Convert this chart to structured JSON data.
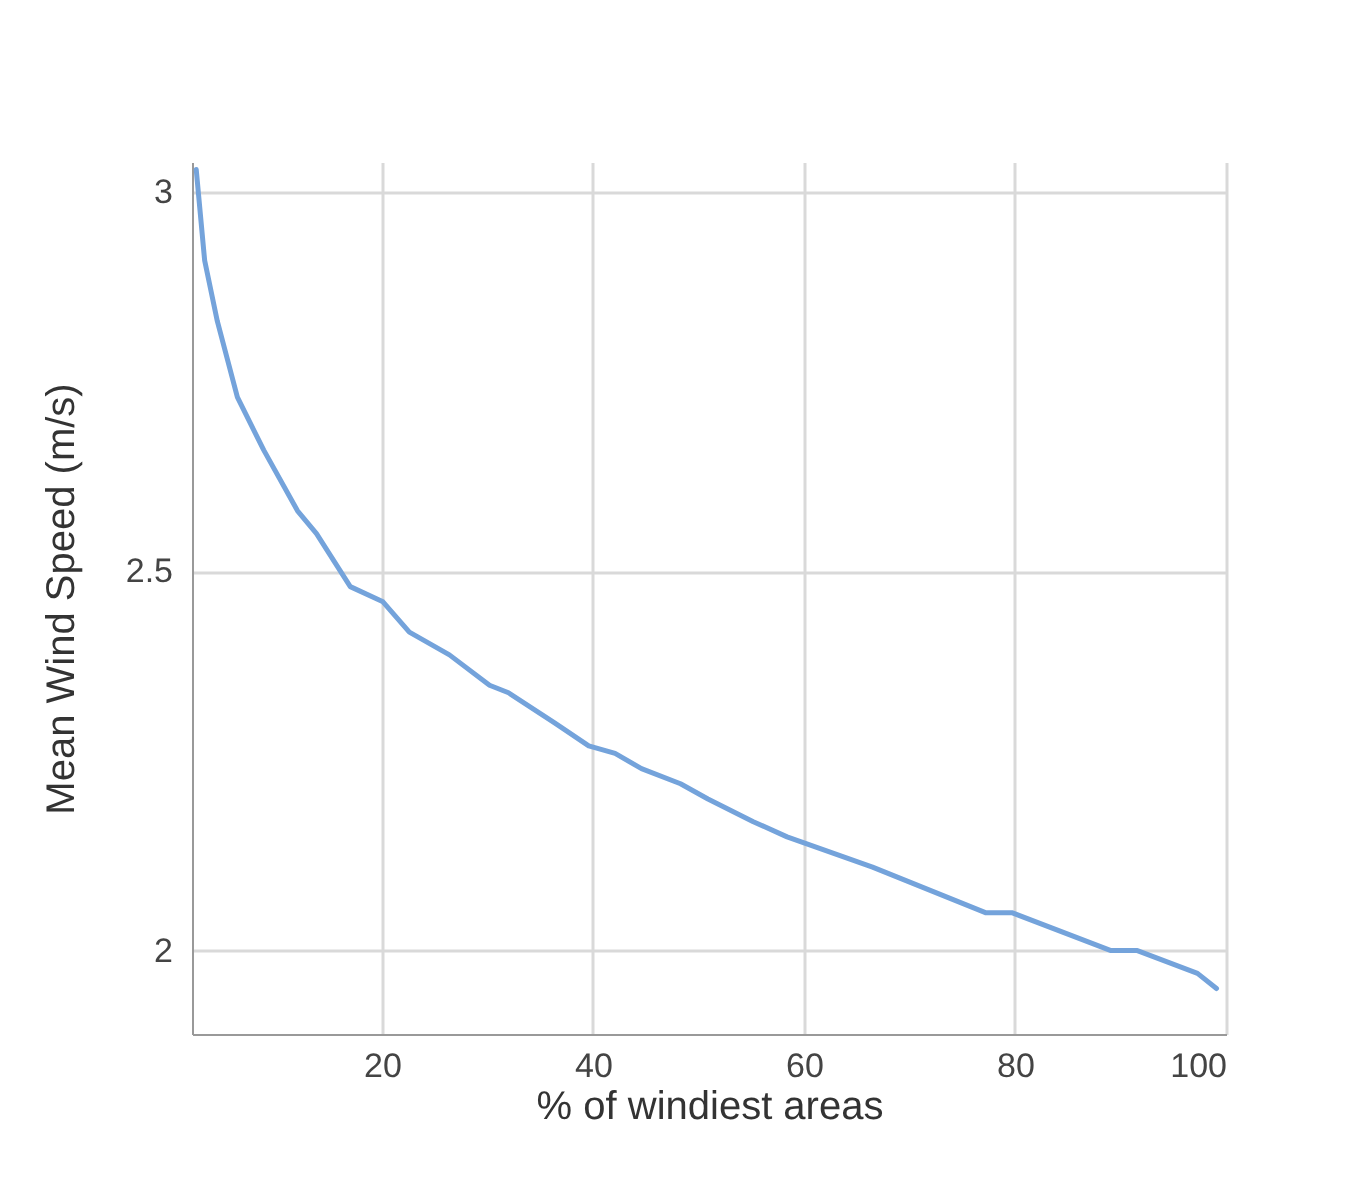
{
  "chart_data": {
    "type": "line",
    "xlabel": "% of windiest areas",
    "ylabel": "Mean Wind Speed (m/s)",
    "x": [
      2.4,
      3.2,
      4.4,
      6.3,
      8.8,
      12,
      13.8,
      17,
      20.1,
      22.6,
      26.4,
      30.2,
      32,
      36.4,
      39.6,
      42.1,
      44.6,
      48.3,
      50.9,
      55.2,
      58.4,
      66.5,
      77.2,
      79.7,
      89.1,
      91.6,
      97.3,
      99.1
    ],
    "series": [
      {
        "color": "#74a3db",
        "values": [
          3.03,
          2.91,
          2.83,
          2.73,
          2.66,
          2.58,
          2.55,
          2.48,
          2.46,
          2.42,
          2.39,
          2.35,
          2.34,
          2.3,
          2.27,
          2.26,
          2.24,
          2.22,
          2.2,
          2.17,
          2.15,
          2.11,
          2.05,
          2.05,
          2.0,
          2.0,
          1.97,
          1.95
        ]
      }
    ],
    "xlim": [
      2,
      100
    ],
    "xticks": [
      20,
      40,
      60,
      80,
      100
    ],
    "ylim": [
      1.89,
      3.04
    ],
    "yticks": [
      2,
      2.5,
      3
    ],
    "grid": true,
    "marker": "none",
    "line_style": "solid"
  }
}
